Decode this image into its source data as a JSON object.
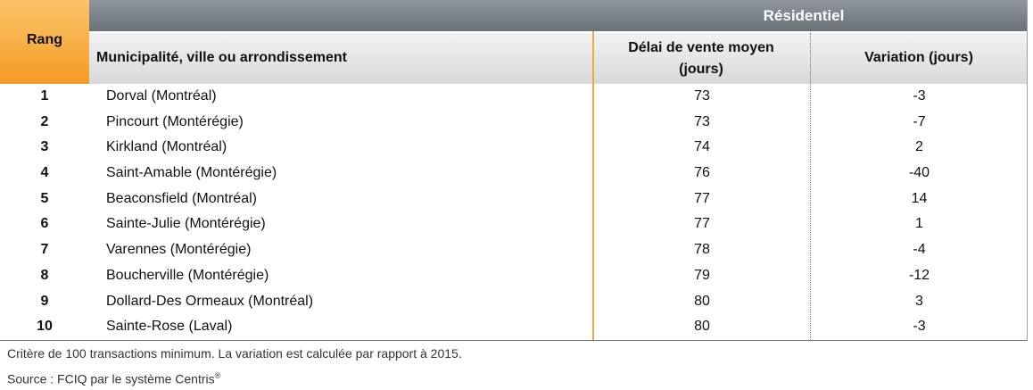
{
  "header": {
    "rang": "Rang",
    "group": "Résidentiel",
    "municipality": "Municipalité, ville ou arrondissement",
    "delai_line1": "Délai de vente moyen",
    "delai_line2": "(jours)",
    "variation": "Variation (jours)"
  },
  "rows": [
    {
      "rank": "1",
      "municipality": "Dorval (Montréal)",
      "delai": "73",
      "variation": "-3"
    },
    {
      "rank": "2",
      "municipality": "Pincourt (Montérégie)",
      "delai": "73",
      "variation": "-7"
    },
    {
      "rank": "3",
      "municipality": "Kirkland (Montréal)",
      "delai": "74",
      "variation": "2"
    },
    {
      "rank": "4",
      "municipality": "Saint-Amable (Montérégie)",
      "delai": "76",
      "variation": "-40"
    },
    {
      "rank": "5",
      "municipality": "Beaconsfield (Montréal)",
      "delai": "77",
      "variation": "14"
    },
    {
      "rank": "6",
      "municipality": "Sainte-Julie (Montérégie)",
      "delai": "77",
      "variation": "1"
    },
    {
      "rank": "7",
      "municipality": "Varennes (Montérégie)",
      "delai": "78",
      "variation": "-4"
    },
    {
      "rank": "8",
      "municipality": "Boucherville (Montérégie)",
      "delai": "79",
      "variation": "-12"
    },
    {
      "rank": "9",
      "municipality": "Dollard-Des Ormeaux (Montréal)",
      "delai": "80",
      "variation": "3"
    },
    {
      "rank": "10",
      "municipality": "Sainte-Rose (Laval)",
      "delai": "80",
      "variation": "-3"
    }
  ],
  "notes": {
    "criteria": "Critère de 100 transactions minimum. La variation est calculée par rapport à 2015.",
    "source": "Source : FCIQ par le système Centris",
    "registered": "®"
  },
  "colors": {
    "rang_orange": "#f39c24",
    "group_gray": "#7b8287",
    "accent_line": "#f3a54a"
  }
}
